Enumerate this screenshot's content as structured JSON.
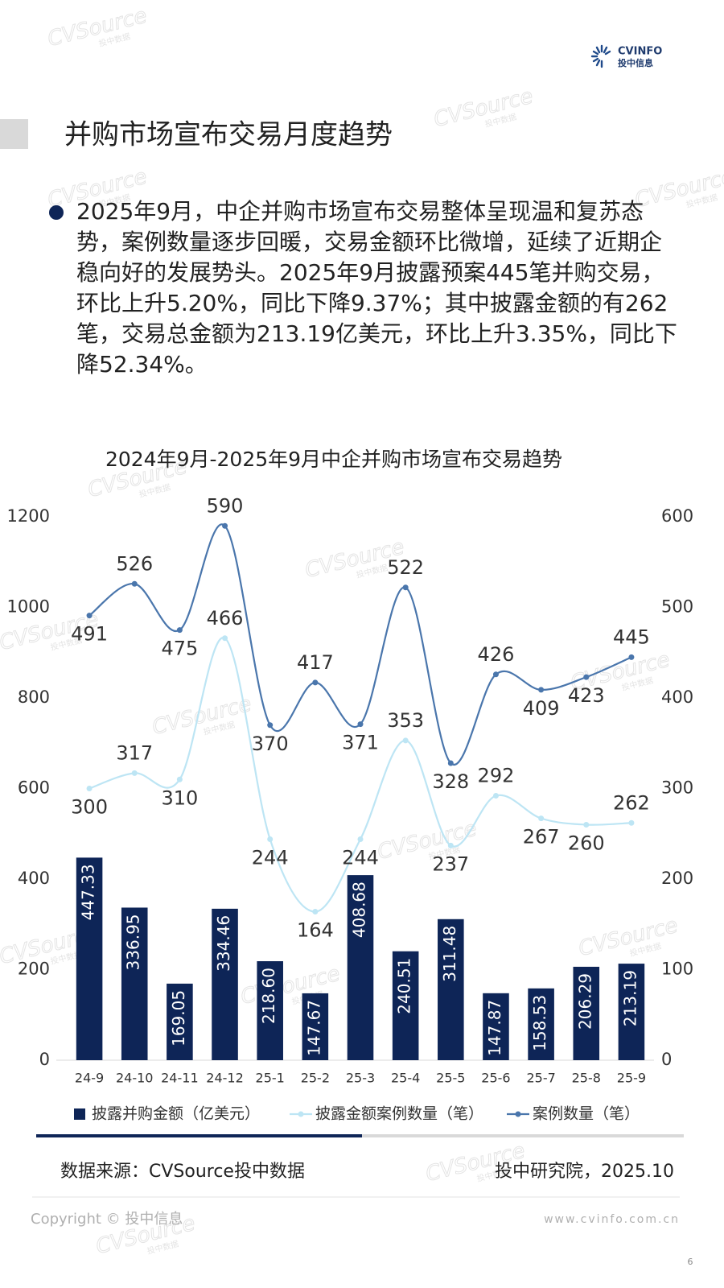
{
  "header": {
    "logo_en": "CVINFO",
    "logo_cn": "投中信息"
  },
  "title": "并购市场宣布交易月度趋势",
  "bullet": "2025年9月，中企并购市场宣布交易整体呈现温和复苏态势，案例数量逐步回暖，交易金额环比微增，延续了近期企稳向好的发展势头。2025年9月披露预案445笔并购交易，环比上升5.20%，同比下降9.37%；其中披露金额的有262笔，交易总金额为213.19亿美元，环比上升3.35%，同比下降52.34%。",
  "watermark": {
    "brand": "CVSource",
    "sub": "投中数据"
  },
  "chart_data": {
    "type": "combo",
    "title": "2024年9月-2025年9月中企并购市场宣布交易趋势",
    "categories": [
      "24-9",
      "24-10",
      "24-11",
      "24-12",
      "25-1",
      "25-2",
      "25-3",
      "25-4",
      "25-5",
      "25-6",
      "25-7",
      "25-8",
      "25-9"
    ],
    "series": [
      {
        "name": "披露并购金额（亿美元）",
        "type": "bar",
        "axis": "y",
        "color": "#0e2557",
        "values": [
          447.33,
          336.95,
          169.05,
          334.46,
          218.6,
          147.67,
          408.68,
          240.51,
          311.48,
          147.87,
          158.53,
          206.29,
          213.19
        ],
        "value_labels": [
          "447.33",
          "336.95",
          "169.05",
          "334.46",
          "218.60",
          "147.67",
          "408.68",
          "240.51",
          "311.48",
          "147.87",
          "158.53",
          "206.29",
          "213.19"
        ]
      },
      {
        "name": "披露金额案例数量（笔）",
        "type": "line",
        "axis": "y2",
        "color": "#bde5f4",
        "values": [
          300,
          317,
          310,
          466,
          244,
          164,
          244,
          353,
          237,
          292,
          267,
          260,
          262
        ]
      },
      {
        "name": "案例数量（笔）",
        "type": "line",
        "axis": "y2",
        "color": "#4a76ac",
        "values": [
          491,
          526,
          475,
          590,
          370,
          417,
          371,
          522,
          328,
          426,
          409,
          423,
          445
        ]
      }
    ],
    "ylim": [
      0,
      1200
    ],
    "yticks": [
      0,
      200,
      400,
      600,
      800,
      1000,
      1200
    ],
    "y2lim": [
      0,
      600
    ],
    "y2ticks": [
      0,
      100,
      200,
      300,
      400,
      500,
      600
    ],
    "legend": "bottom"
  },
  "footer": {
    "source": "数据来源：CVSource投中数据",
    "credit": "投中研究院，2025.10",
    "copyright": "Copyright © 投中信息",
    "website": "www.cvinfo.com.cn",
    "page": "6"
  }
}
